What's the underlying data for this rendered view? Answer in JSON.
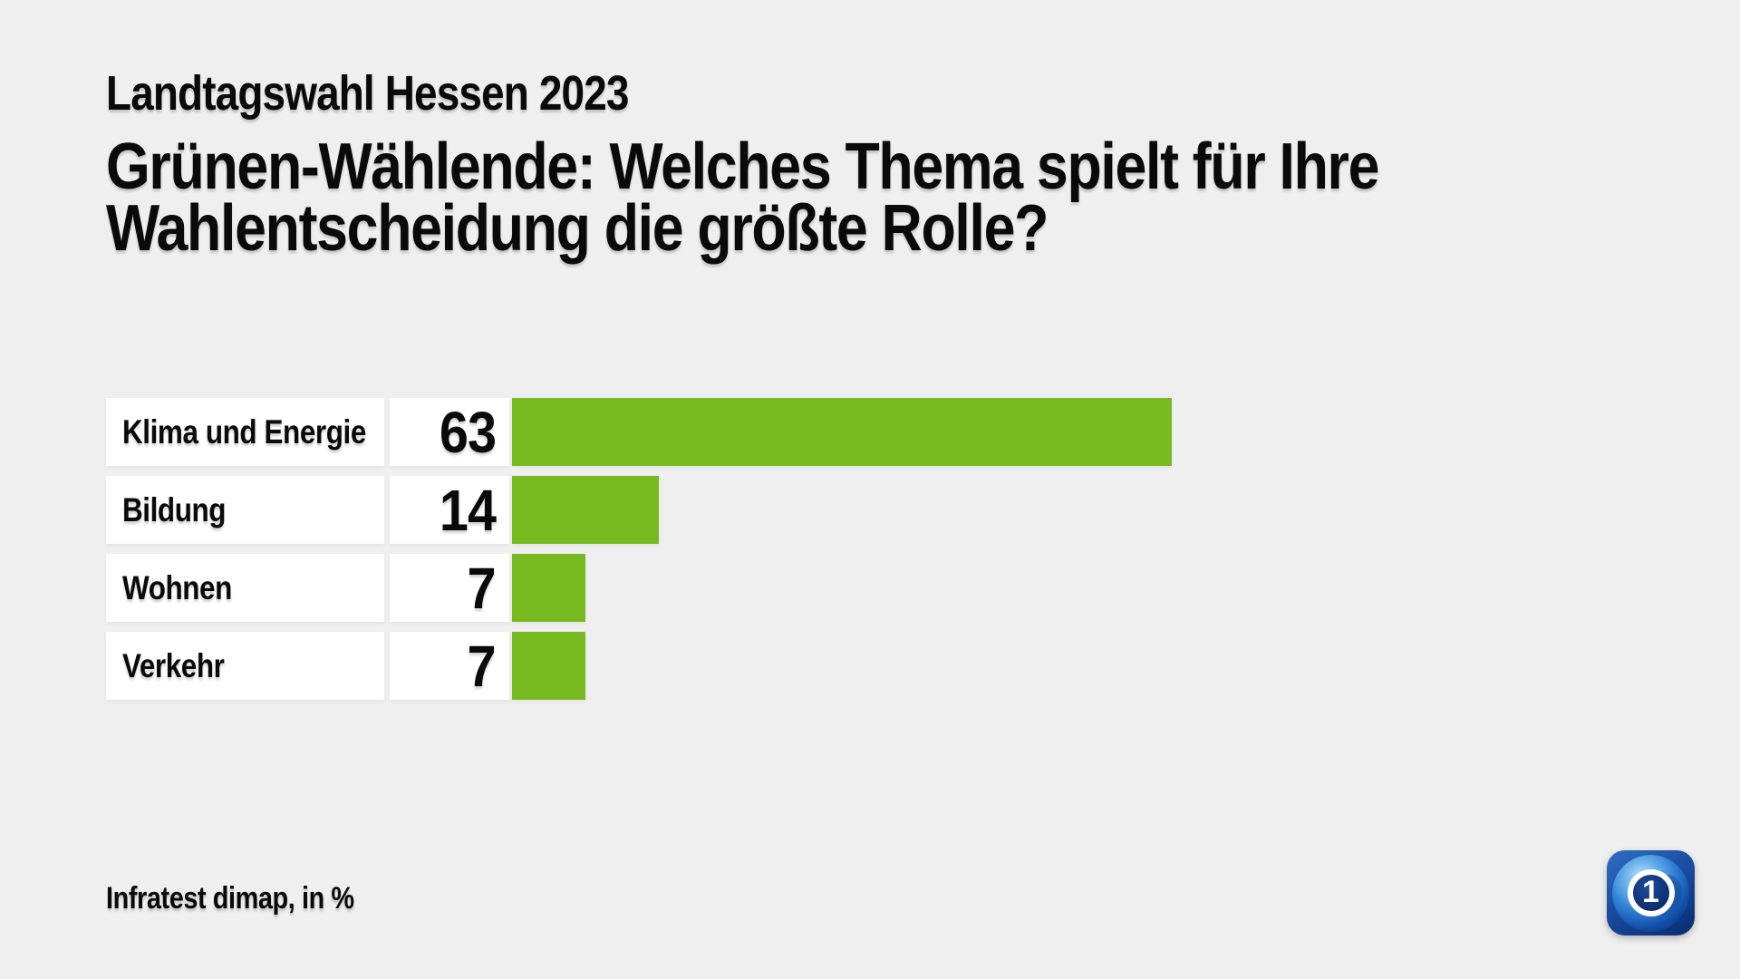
{
  "header": {
    "kicker": "Landtagswahl Hessen 2023",
    "title_lines": [
      "Grünen-Wählende: Welches Thema spielt für Ihre",
      "Wahlentscheidung die größte Rolle?"
    ]
  },
  "chart_data": {
    "type": "bar",
    "orientation": "horizontal",
    "title": "Grünen-Wählende: Welches Thema spielt für Ihre Wahlentscheidung die größte Rolle?",
    "subtitle": "Landtagswahl Hessen 2023",
    "source": "Infratest dimap",
    "unit": "%",
    "categories": [
      "Klima und Energie",
      "Bildung",
      "Wohnen",
      "Verkehr"
    ],
    "values": [
      63,
      14,
      7,
      7
    ],
    "xlim": [
      0,
      63
    ],
    "grid": false,
    "legend": false,
    "value_labels_shown": true,
    "bar_color": "#77BA1F"
  },
  "footer": {
    "source_note": "Infratest dimap, in %"
  },
  "logo": {
    "name": "ARD tagesschau globe logo",
    "digit": "1"
  },
  "colors": {
    "background": "#EFEFEF",
    "box_white": "#FFFFFF",
    "bar_green": "#77BA1F",
    "text_black": "#0A0A0A",
    "logo_blue_light": "#2F6FC2",
    "logo_blue_dark": "#092B6D"
  }
}
